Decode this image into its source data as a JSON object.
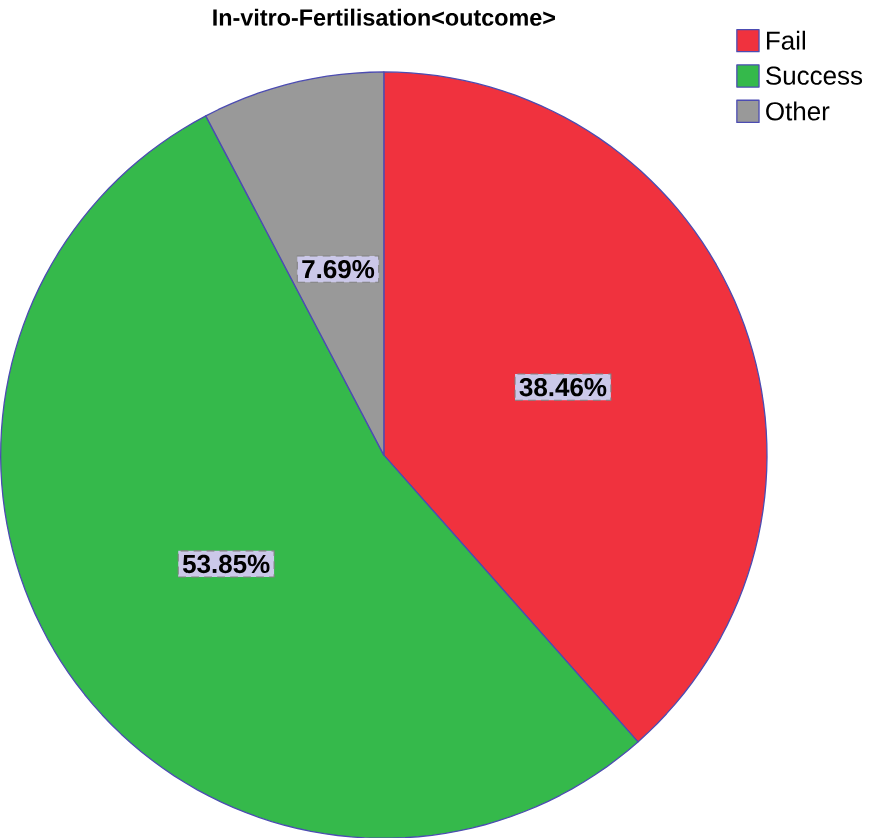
{
  "chart_data": {
    "type": "pie",
    "title": "In-vitro-Fertilisation<outcome>",
    "categories": [
      "Fail",
      "Success",
      "Other"
    ],
    "values": [
      38.46,
      53.85,
      7.69
    ],
    "value_labels": [
      "38.46%",
      "53.85%",
      "7.69%"
    ],
    "colors": [
      "#f0323e",
      "#35b94b",
      "#999999"
    ],
    "legend": "top right"
  }
}
